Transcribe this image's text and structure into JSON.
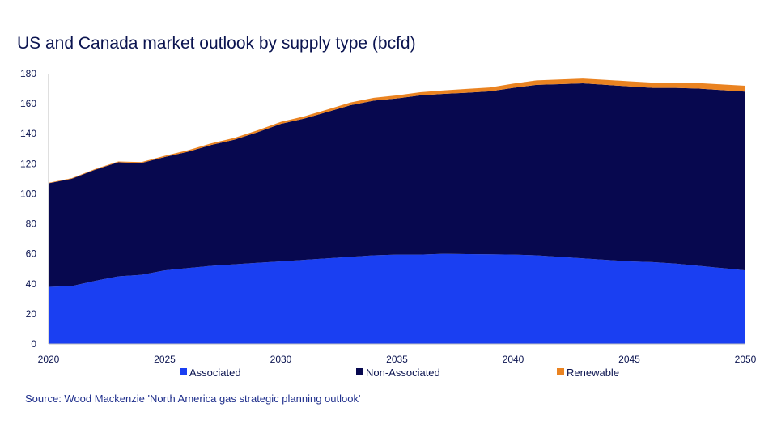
{
  "chart_data": {
    "type": "area",
    "title": "US and Canada market outlook by supply type (bcfd)",
    "x": [
      2020,
      2021,
      2022,
      2023,
      2024,
      2025,
      2026,
      2027,
      2028,
      2029,
      2030,
      2031,
      2032,
      2033,
      2034,
      2035,
      2036,
      2037,
      2038,
      2039,
      2040,
      2041,
      2042,
      2043,
      2044,
      2045,
      2046,
      2047,
      2048,
      2049,
      2050
    ],
    "x_ticks": [
      2020,
      2025,
      2030,
      2035,
      2040,
      2045,
      2050
    ],
    "y_ticks": [
      0,
      20,
      40,
      60,
      80,
      100,
      120,
      140,
      160,
      180
    ],
    "ylim": [
      0,
      180
    ],
    "stacked": true,
    "series": [
      {
        "name": "Associated",
        "color": "#1a3ff2",
        "values": [
          38,
          38.5,
          42,
          45,
          46,
          49,
          50.5,
          52,
          53,
          54,
          55,
          56,
          57,
          58,
          59,
          59.5,
          59.5,
          60,
          59.8,
          59.7,
          59.5,
          59,
          58,
          57,
          56,
          55,
          54.5,
          53.5,
          52,
          50.5,
          49
        ]
      },
      {
        "name": "Non-Associated",
        "color": "#07084f",
        "values": [
          69,
          71.5,
          74,
          76,
          74.5,
          75.5,
          77.5,
          80.5,
          83,
          87,
          91.5,
          94,
          97.5,
          101,
          103,
          104,
          106,
          106.5,
          107.5,
          108.5,
          111,
          113.5,
          115,
          116.5,
          116.5,
          116.5,
          116,
          117,
          118,
          118.5,
          119
        ]
      },
      {
        "name": "Renewable",
        "color": "#ea8321",
        "values": [
          0.3,
          0.4,
          0.5,
          0.5,
          0.6,
          0.8,
          1,
          1.1,
          1.2,
          1.3,
          1.4,
          1.5,
          1.6,
          1.8,
          1.9,
          2,
          2.1,
          2.3,
          2.5,
          2.6,
          2.8,
          3,
          3.1,
          3.2,
          3.3,
          3.4,
          3.5,
          3.6,
          3.7,
          3.8,
          3.9
        ]
      }
    ],
    "legend_position": "bottom",
    "grid": false
  },
  "source": "Source: Wood Mackenzie 'North America gas strategic planning outlook'"
}
